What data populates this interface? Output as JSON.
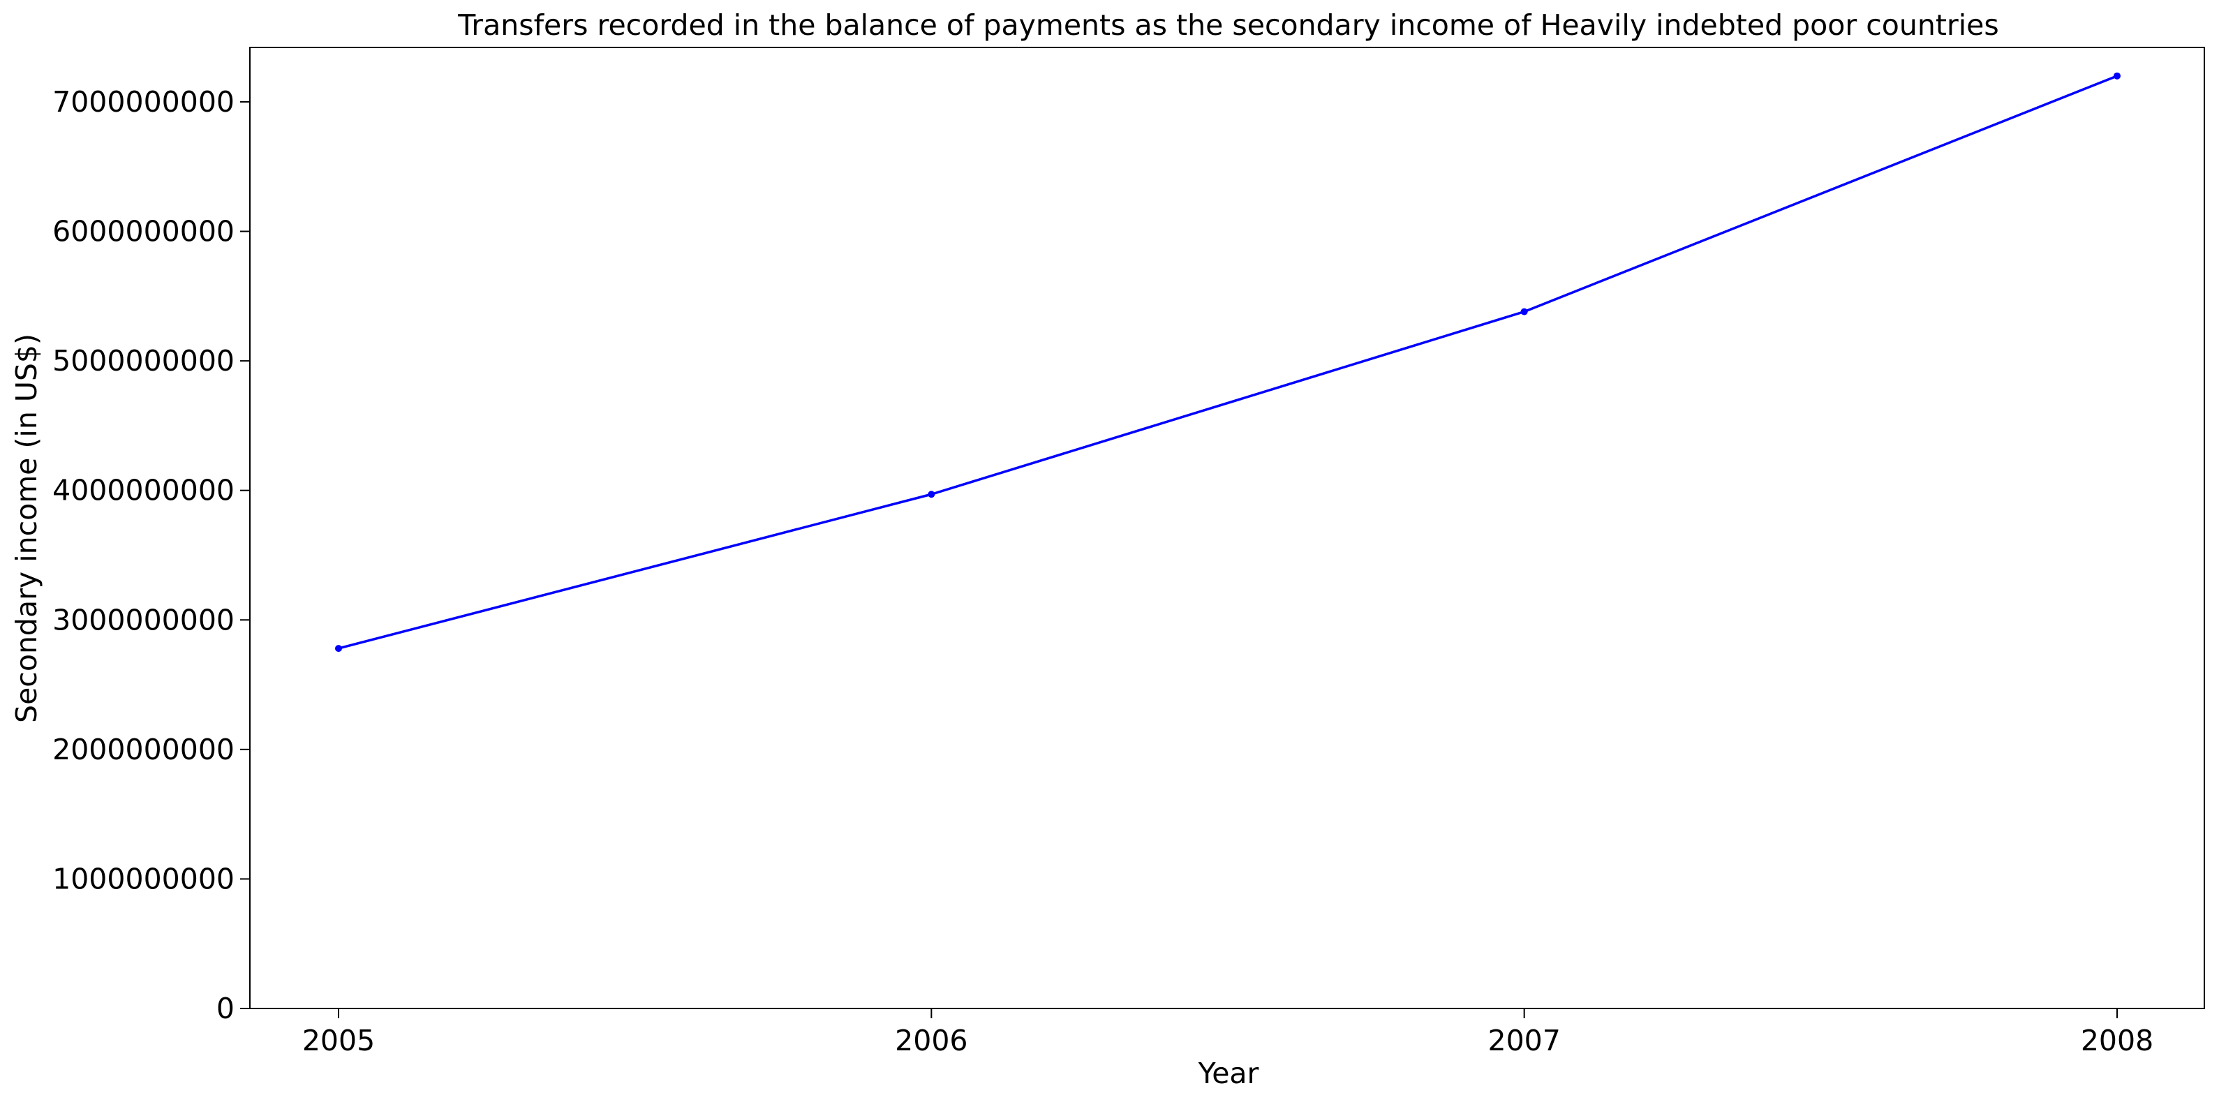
{
  "chart_data": {
    "type": "line",
    "title": "Transfers recorded in the balance of payments as the secondary income of Heavily indebted poor countries",
    "xlabel": "Year",
    "ylabel": "Secondary income (in US$)",
    "x": [
      "2005",
      "2006",
      "2007",
      "2008"
    ],
    "series": [
      {
        "values": [
          2780000000,
          3970000000,
          5380000000,
          7200000000
        ],
        "color": "#0000ff",
        "marker": "circle"
      }
    ],
    "ylim": [
      0,
      7420000000
    ],
    "yticks": [
      0,
      1000000000,
      2000000000,
      3000000000,
      4000000000,
      5000000000,
      6000000000,
      7000000000
    ],
    "ytick_labels": [
      "0",
      "1000000000",
      "2000000000",
      "3000000000",
      "4000000000",
      "5000000000",
      "6000000000",
      "7000000000"
    ],
    "grid": false,
    "legend": "none"
  }
}
